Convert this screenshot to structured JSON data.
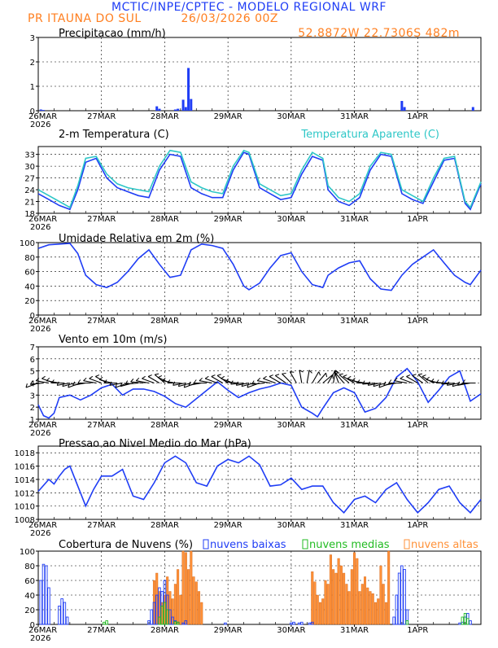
{
  "header": {
    "title": "MCTIC/INPE/CPTEC - MODELO REGIONAL WRF",
    "location": "PR ITAUNA DO SUL",
    "run": "26/03/2026 00Z",
    "coords": "52.8872W  22.7306S  482m"
  },
  "colors": {
    "blue": "#1f3df5",
    "cyan": "#2ec7c7",
    "orange": "#ff9138",
    "green": "#22bb22",
    "black": "#000000"
  },
  "time_axis": {
    "labels": [
      "26MAR",
      "27MAR",
      "28MAR",
      "29MAR",
      "30MAR",
      "31MAR",
      "1APR"
    ],
    "year_label": "2026",
    "hours_total": 168
  },
  "chart_data": [
    {
      "id": "precip",
      "type": "bar",
      "title": "Precipitacao (mm/h)",
      "ylim": [
        0,
        3
      ],
      "yticks": [
        0,
        1,
        2,
        3
      ],
      "x_hours": [
        1,
        2,
        45,
        46,
        52,
        53,
        55,
        56,
        57,
        58,
        138,
        139,
        165
      ],
      "values": [
        0.05,
        0.03,
        0.18,
        0.08,
        0.05,
        0.08,
        0.45,
        0.15,
        1.75,
        0.48,
        0.4,
        0.15,
        0.15
      ]
    },
    {
      "id": "temp",
      "type": "line",
      "title": "2-m Temperatura (C)",
      "legend": "Temperatura Aparente (C)",
      "ylim": [
        18,
        35
      ],
      "yticks": [
        18,
        21,
        24,
        27,
        30,
        33
      ],
      "series": [
        {
          "name": "Temperatura",
          "color": "#1f3df5",
          "x": [
            0,
            4,
            8,
            12,
            15,
            18,
            22,
            26,
            30,
            34,
            38,
            42,
            46,
            50,
            54,
            58,
            62,
            66,
            70,
            74,
            78,
            80,
            84,
            88,
            92,
            96,
            100,
            104,
            108,
            110,
            114,
            118,
            122,
            126,
            130,
            134,
            138,
            142,
            146,
            150,
            154,
            158,
            162,
            164,
            168
          ],
          "y": [
            23,
            21.5,
            20,
            19,
            24,
            31,
            32,
            27,
            24.5,
            23.5,
            22.5,
            22,
            29,
            33,
            32.5,
            24.5,
            23,
            22,
            22,
            29,
            33.5,
            33,
            24.5,
            23,
            21.5,
            22,
            28,
            32.5,
            31.5,
            24,
            21,
            20,
            22,
            29,
            33,
            32.5,
            23,
            21.5,
            20.5,
            26,
            31.5,
            32,
            20.5,
            19,
            25.5
          ]
        },
        {
          "name": "Temperatura Aparente",
          "color": "#2ec7c7",
          "x": [
            0,
            4,
            8,
            12,
            15,
            18,
            22,
            26,
            30,
            34,
            38,
            42,
            46,
            50,
            54,
            58,
            62,
            66,
            70,
            74,
            78,
            80,
            84,
            88,
            92,
            96,
            100,
            104,
            108,
            110,
            114,
            118,
            122,
            126,
            130,
            134,
            138,
            142,
            146,
            150,
            154,
            158,
            162,
            164,
            168
          ],
          "y": [
            24,
            22.5,
            21,
            19.5,
            25,
            32,
            32.5,
            28,
            25.5,
            24.5,
            24,
            23.5,
            30,
            34,
            33.5,
            26,
            24.5,
            23.5,
            23,
            30,
            34,
            33.5,
            25.5,
            24,
            22.5,
            23,
            29,
            33.5,
            32,
            25,
            22,
            21,
            23,
            30,
            33.5,
            33,
            24,
            22.5,
            21,
            27,
            32,
            32.5,
            21,
            19.5,
            26
          ]
        }
      ]
    },
    {
      "id": "rh",
      "type": "line",
      "title": "Umidade Relativa em 2m (%)",
      "ylim": [
        0,
        100
      ],
      "yticks": [
        0,
        20,
        40,
        60,
        80,
        100
      ],
      "series": [
        {
          "name": "Umidade",
          "color": "#1f3df5",
          "x": [
            0,
            4,
            8,
            12,
            15,
            18,
            22,
            26,
            30,
            34,
            38,
            42,
            46,
            50,
            54,
            58,
            62,
            66,
            70,
            74,
            78,
            80,
            84,
            88,
            92,
            96,
            100,
            104,
            108,
            110,
            114,
            118,
            122,
            126,
            130,
            134,
            138,
            142,
            146,
            150,
            154,
            158,
            162,
            164,
            168
          ],
          "y": [
            92,
            97,
            98,
            99,
            85,
            55,
            42,
            38,
            45,
            60,
            78,
            90,
            70,
            52,
            55,
            90,
            98,
            96,
            92,
            70,
            40,
            35,
            44,
            65,
            82,
            86,
            60,
            42,
            38,
            55,
            65,
            72,
            75,
            50,
            36,
            34,
            55,
            70,
            80,
            90,
            72,
            55,
            45,
            42,
            62
          ]
        }
      ]
    },
    {
      "id": "wind",
      "type": "line",
      "title": "Vento em 10m (m/s)",
      "ylim": [
        1,
        7
      ],
      "yticks": [
        1,
        2,
        3,
        4,
        5,
        6,
        7
      ],
      "barb_level": 4,
      "series": [
        {
          "name": "Vento",
          "color": "#1f3df5",
          "x": [
            0,
            2,
            4,
            6,
            8,
            12,
            16,
            20,
            24,
            28,
            32,
            36,
            40,
            44,
            48,
            52,
            56,
            60,
            64,
            68,
            72,
            76,
            80,
            84,
            88,
            92,
            96,
            100,
            104,
            106,
            108,
            112,
            116,
            120,
            124,
            128,
            132,
            136,
            140,
            144,
            148,
            152,
            156,
            160,
            164,
            168
          ],
          "y": [
            2.2,
            1.3,
            1.1,
            1.5,
            2.8,
            3.0,
            2.6,
            3.0,
            3.6,
            3.9,
            3.0,
            3.5,
            3.5,
            3.3,
            2.9,
            2.3,
            2.0,
            2.7,
            3.4,
            4.1,
            3.4,
            2.8,
            3.2,
            3.5,
            3.7,
            4.0,
            3.8,
            2.0,
            1.5,
            1.2,
            1.9,
            3.2,
            3.6,
            3.2,
            1.6,
            1.9,
            2.8,
            4.5,
            5.2,
            4.1,
            2.4,
            3.4,
            4.5,
            5.0,
            2.5,
            3.1
          ]
        }
      ],
      "barbs": {
        "x_hours": [
          0,
          2,
          4,
          6,
          8,
          10,
          12,
          14,
          16,
          18,
          20,
          22,
          24,
          26,
          28,
          30,
          32,
          34,
          36,
          38,
          40,
          42,
          44,
          46,
          48,
          50,
          52,
          54,
          56,
          58,
          60,
          62,
          64,
          66,
          68,
          70,
          72,
          74,
          76,
          78,
          80,
          82,
          84,
          86,
          88,
          90,
          92,
          94,
          96,
          98,
          100,
          102,
          104,
          106,
          108,
          110,
          112,
          114,
          116,
          118,
          120,
          122,
          124,
          126,
          128,
          130,
          132,
          134,
          136,
          138,
          140,
          142,
          144,
          146,
          148,
          150,
          152,
          154,
          156,
          158,
          160,
          162,
          164,
          166
        ],
        "dir_deg": [
          160,
          175,
          190,
          200,
          190,
          180,
          170,
          165,
          160,
          170,
          180,
          190,
          200,
          210,
          195,
          180,
          170,
          160,
          165,
          175,
          185,
          190,
          200,
          210,
          220,
          205,
          190,
          180,
          170,
          165,
          160,
          170,
          180,
          190,
          200,
          210,
          215,
          200,
          185,
          175,
          170,
          165,
          160,
          175,
          190,
          200,
          210,
          215,
          225,
          240,
          260,
          280,
          300,
          310,
          320,
          300,
          280,
          250,
          230,
          220,
          210,
          200,
          190,
          180,
          175,
          170,
          165,
          160,
          170,
          180,
          190,
          200,
          210,
          215,
          220,
          210,
          195,
          185,
          180,
          175,
          170,
          165,
          170,
          180
        ]
      }
    },
    {
      "id": "pressure",
      "type": "line",
      "title": "Pressao ao Nivel Medio do Mar (hPa)",
      "ylim": [
        1008,
        1019
      ],
      "yticks": [
        1008,
        1010,
        1012,
        1014,
        1016,
        1018
      ],
      "series": [
        {
          "name": "Pressao",
          "color": "#1f3df5",
          "x": [
            0,
            4,
            6,
            8,
            10,
            12,
            15,
            18,
            21,
            24,
            28,
            32,
            36,
            40,
            44,
            48,
            52,
            56,
            60,
            64,
            68,
            72,
            76,
            80,
            84,
            88,
            92,
            96,
            100,
            104,
            108,
            112,
            116,
            120,
            124,
            128,
            132,
            136,
            140,
            144,
            148,
            152,
            156,
            160,
            164,
            168
          ],
          "y": [
            1012.2,
            1014.0,
            1013.3,
            1014.5,
            1015.5,
            1016.0,
            1013.0,
            1010.0,
            1012.5,
            1014.5,
            1014.5,
            1015.5,
            1011.5,
            1011.0,
            1013.5,
            1016.5,
            1017.5,
            1016.5,
            1013.5,
            1013.0,
            1016.0,
            1017.0,
            1016.5,
            1017.5,
            1016.2,
            1013.0,
            1013.2,
            1014.2,
            1012.5,
            1013.0,
            1013.0,
            1010.5,
            1009.0,
            1011.0,
            1011.5,
            1010.5,
            1012.5,
            1013.5,
            1011.0,
            1009.0,
            1010.5,
            1012.5,
            1013.0,
            1010.5,
            1009.0,
            1011.0
          ]
        }
      ]
    },
    {
      "id": "clouds",
      "type": "bar",
      "title": "Cobertura de Nuvens (%)",
      "legend": [
        "nuvens baixas",
        "nuvens medias",
        "nuvens altas"
      ],
      "ylim": [
        0,
        100
      ],
      "yticks": [
        0,
        20,
        40,
        60,
        80,
        100
      ],
      "series": [
        {
          "name": "nuvens baixas",
          "color": "#1f3df5",
          "style": "outline",
          "x_hours": [
            1,
            2,
            3,
            4,
            8,
            9,
            10,
            11,
            42,
            43,
            44,
            45,
            46,
            47,
            48,
            49,
            50,
            51,
            52,
            53,
            55,
            56,
            71,
            96,
            97,
            99,
            100,
            103,
            104,
            135,
            136,
            137,
            138,
            139,
            140,
            160,
            161,
            162,
            163,
            164
          ],
          "values": [
            60,
            82,
            80,
            50,
            25,
            35,
            30,
            10,
            5,
            20,
            30,
            40,
            50,
            45,
            60,
            40,
            20,
            10,
            5,
            3,
            2,
            5,
            2,
            2,
            3,
            2,
            3,
            2,
            3,
            10,
            40,
            70,
            80,
            75,
            20,
            2,
            3,
            10,
            15,
            5
          ]
        },
        {
          "name": "nuvens medias",
          "color": "#22bb22",
          "style": "outline",
          "x_hours": [
            25,
            26,
            46,
            47,
            48,
            49,
            52,
            53,
            140,
            161,
            162,
            163
          ],
          "values": [
            3,
            5,
            10,
            25,
            30,
            20,
            4,
            3,
            5,
            10,
            15,
            8
          ]
        },
        {
          "name": "nuvens altas",
          "color": "#ff9138",
          "style": "filled",
          "x_hours": [
            44,
            45,
            46,
            47,
            48,
            49,
            50,
            51,
            52,
            53,
            54,
            55,
            56,
            57,
            58,
            59,
            60,
            61,
            62,
            104,
            105,
            106,
            107,
            108,
            109,
            110,
            111,
            112,
            113,
            114,
            115,
            116,
            117,
            118,
            119,
            120,
            121,
            122,
            123,
            124,
            125,
            126,
            127,
            128,
            129,
            130,
            131,
            132,
            133
          ],
          "values": [
            60,
            70,
            45,
            30,
            40,
            65,
            45,
            35,
            55,
            75,
            40,
            100,
            98,
            75,
            100,
            65,
            58,
            45,
            30,
            72,
            58,
            40,
            30,
            35,
            60,
            55,
            95,
            75,
            70,
            90,
            80,
            70,
            55,
            45,
            75,
            98,
            90,
            45,
            55,
            65,
            50,
            45,
            42,
            30,
            35,
            80,
            55,
            30,
            100
          ]
        }
      ]
    }
  ]
}
